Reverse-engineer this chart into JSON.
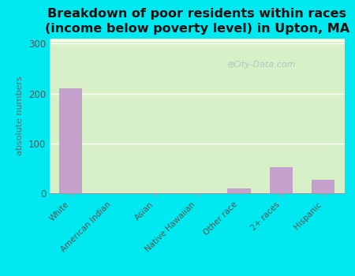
{
  "title": "Breakdown of poor residents within races\n(income below poverty level) in Upton, MA",
  "categories": [
    "White",
    "American Indian",
    "Asian",
    "Native Hawaiian",
    "Other race",
    "2+ races",
    "Hispanic"
  ],
  "values": [
    210,
    0,
    0,
    0,
    10,
    52,
    27
  ],
  "bar_color": "#c4a0cc",
  "ylabel": "absolute numbers",
  "yticks": [
    0,
    100,
    200,
    300
  ],
  "ylim": [
    0,
    310
  ],
  "outer_bg_color": "#00e8f0",
  "title_fontsize": 11.5,
  "watermark": "City-Data.com"
}
